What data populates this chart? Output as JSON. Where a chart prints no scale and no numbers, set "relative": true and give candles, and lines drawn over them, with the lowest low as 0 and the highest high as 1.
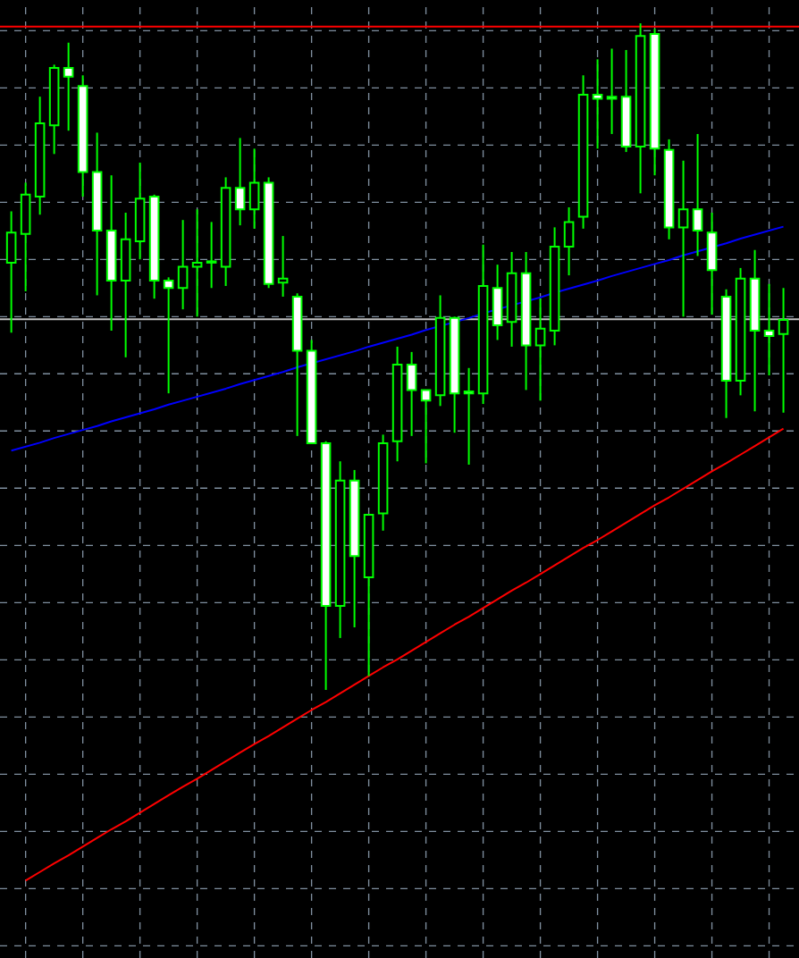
{
  "chart_data": {
    "type": "candlestick",
    "relative": true,
    "color": "#00ff00",
    "grid": true,
    "tick_labels": false,
    "categories": [
      null,
      null,
      null,
      null,
      null,
      null,
      null,
      null,
      null,
      null,
      null,
      null,
      null,
      null,
      null,
      null,
      null,
      null,
      null,
      null,
      null,
      null,
      null,
      null,
      null,
      null,
      null,
      null,
      null,
      null,
      null,
      null,
      null,
      null,
      null,
      null,
      null,
      null,
      null,
      null,
      null,
      null,
      null,
      null,
      null,
      null,
      null,
      null,
      null,
      null,
      null,
      null,
      null,
      null,
      null
    ],
    "ohlc": [
      [
        0.641,
        0.718,
        0.536,
        0.686
      ],
      [
        0.684,
        0.761,
        0.598,
        0.743
      ],
      [
        0.74,
        0.89,
        0.713,
        0.85
      ],
      [
        0.847,
        0.938,
        0.804,
        0.933
      ],
      [
        0.933,
        0.971,
        0.839,
        0.92
      ],
      [
        0.906,
        0.922,
        0.74,
        0.777
      ],
      [
        0.777,
        0.836,
        0.592,
        0.689
      ],
      [
        0.689,
        0.772,
        0.539,
        0.614
      ],
      [
        0.614,
        0.716,
        0.499,
        0.676
      ],
      [
        0.673,
        0.791,
        0.646,
        0.737
      ],
      [
        0.74,
        0.743,
        0.587,
        0.614
      ],
      [
        0.614,
        0.619,
        0.445,
        0.603
      ],
      [
        0.603,
        0.705,
        0.571,
        0.635
      ],
      [
        0.635,
        0.721,
        0.56,
        0.641
      ],
      [
        0.643,
        0.702,
        0.603,
        0.641
      ],
      [
        0.635,
        0.769,
        0.606,
        0.753
      ],
      [
        0.753,
        0.828,
        0.697,
        0.721
      ],
      [
        0.721,
        0.812,
        0.692,
        0.761
      ],
      [
        0.761,
        0.769,
        0.603,
        0.609
      ],
      [
        0.611,
        0.681,
        0.59,
        0.617
      ],
      [
        0.59,
        0.595,
        0.381,
        0.509
      ],
      [
        0.509,
        0.525,
        0.37,
        0.37
      ],
      [
        0.37,
        0.373,
        0.0,
        0.126
      ],
      [
        0.126,
        0.343,
        0.078,
        0.314
      ],
      [
        0.314,
        0.33,
        0.094,
        0.201
      ],
      [
        0.169,
        0.263,
        0.021,
        0.263
      ],
      [
        0.265,
        0.383,
        0.239,
        0.37
      ],
      [
        0.373,
        0.515,
        0.343,
        0.488
      ],
      [
        0.488,
        0.507,
        0.381,
        0.45
      ],
      [
        0.45,
        0.45,
        0.34,
        0.434
      ],
      [
        0.442,
        0.592,
        0.426,
        0.558
      ],
      [
        0.558,
        0.56,
        0.386,
        0.445
      ],
      [
        0.448,
        0.483,
        0.338,
        0.445
      ],
      [
        0.445,
        0.668,
        0.429,
        0.606
      ],
      [
        0.603,
        0.638,
        0.525,
        0.547
      ],
      [
        0.552,
        0.657,
        0.515,
        0.625
      ],
      [
        0.625,
        0.657,
        0.45,
        0.517
      ],
      [
        0.517,
        0.587,
        0.434,
        0.542
      ],
      [
        0.539,
        0.694,
        0.517,
        0.665
      ],
      [
        0.665,
        0.724,
        0.622,
        0.702
      ],
      [
        0.71,
        0.922,
        0.692,
        0.893
      ],
      [
        0.893,
        0.946,
        0.812,
        0.887
      ],
      [
        0.89,
        0.962,
        0.834,
        0.887
      ],
      [
        0.89,
        0.96,
        0.807,
        0.815
      ],
      [
        0.815,
        1.0,
        0.745,
        0.981
      ],
      [
        0.984,
        0.992,
        0.772,
        0.812
      ],
      [
        0.81,
        0.826,
        0.676,
        0.694
      ],
      [
        0.694,
        0.794,
        0.56,
        0.721
      ],
      [
        0.721,
        0.834,
        0.651,
        0.689
      ],
      [
        0.686,
        0.716,
        0.563,
        0.63
      ],
      [
        0.59,
        0.601,
        0.408,
        0.464
      ],
      [
        0.464,
        0.633,
        0.442,
        0.617
      ],
      [
        0.617,
        0.66,
        0.418,
        0.539
      ],
      [
        0.539,
        0.609,
        0.472,
        0.531
      ],
      [
        0.534,
        0.603,
        0.416,
        0.555
      ]
    ],
    "series": [
      {
        "type": "line",
        "color": "#0000ff",
        "values": [
          0.359,
          0.365,
          0.371,
          0.378,
          0.384,
          0.39,
          0.396,
          0.403,
          0.409,
          0.415,
          0.421,
          0.428,
          0.434,
          0.44,
          0.446,
          0.452,
          0.459,
          0.465,
          0.471,
          0.477,
          0.484,
          0.49,
          0.496,
          0.502,
          0.508,
          0.515,
          0.521,
          0.527,
          0.533,
          0.54,
          0.546,
          0.552,
          0.558,
          0.565,
          0.571,
          0.577,
          0.583,
          0.589,
          0.596,
          0.602,
          0.608,
          0.614,
          0.621,
          0.627,
          0.633,
          0.639,
          0.645,
          0.652,
          0.658,
          0.664,
          0.67,
          0.677,
          0.683,
          0.689,
          0.695
        ]
      },
      {
        "type": "line",
        "color": "#ff0000",
        "values": [
          null,
          -0.286,
          -0.273,
          -0.26,
          -0.248,
          -0.235,
          -0.222,
          -0.209,
          -0.197,
          -0.184,
          -0.171,
          -0.158,
          -0.145,
          -0.133,
          -0.12,
          -0.107,
          -0.094,
          -0.081,
          -0.069,
          -0.056,
          -0.043,
          -0.03,
          -0.018,
          -0.005,
          0.008,
          0.021,
          0.034,
          0.046,
          0.059,
          0.072,
          0.085,
          0.098,
          0.11,
          0.123,
          0.136,
          0.149,
          0.161,
          0.174,
          0.187,
          0.2,
          0.213,
          0.225,
          0.238,
          0.251,
          0.264,
          0.277,
          0.289,
          0.302,
          0.315,
          0.328,
          0.34,
          0.353,
          0.366,
          0.379,
          0.392
        ]
      }
    ],
    "ref_lines": [
      {
        "axis": "y",
        "value": 0.556,
        "color": "#c0c0c0"
      },
      {
        "axis": "y",
        "value": 0.995,
        "color": "#ff0000"
      }
    ]
  }
}
